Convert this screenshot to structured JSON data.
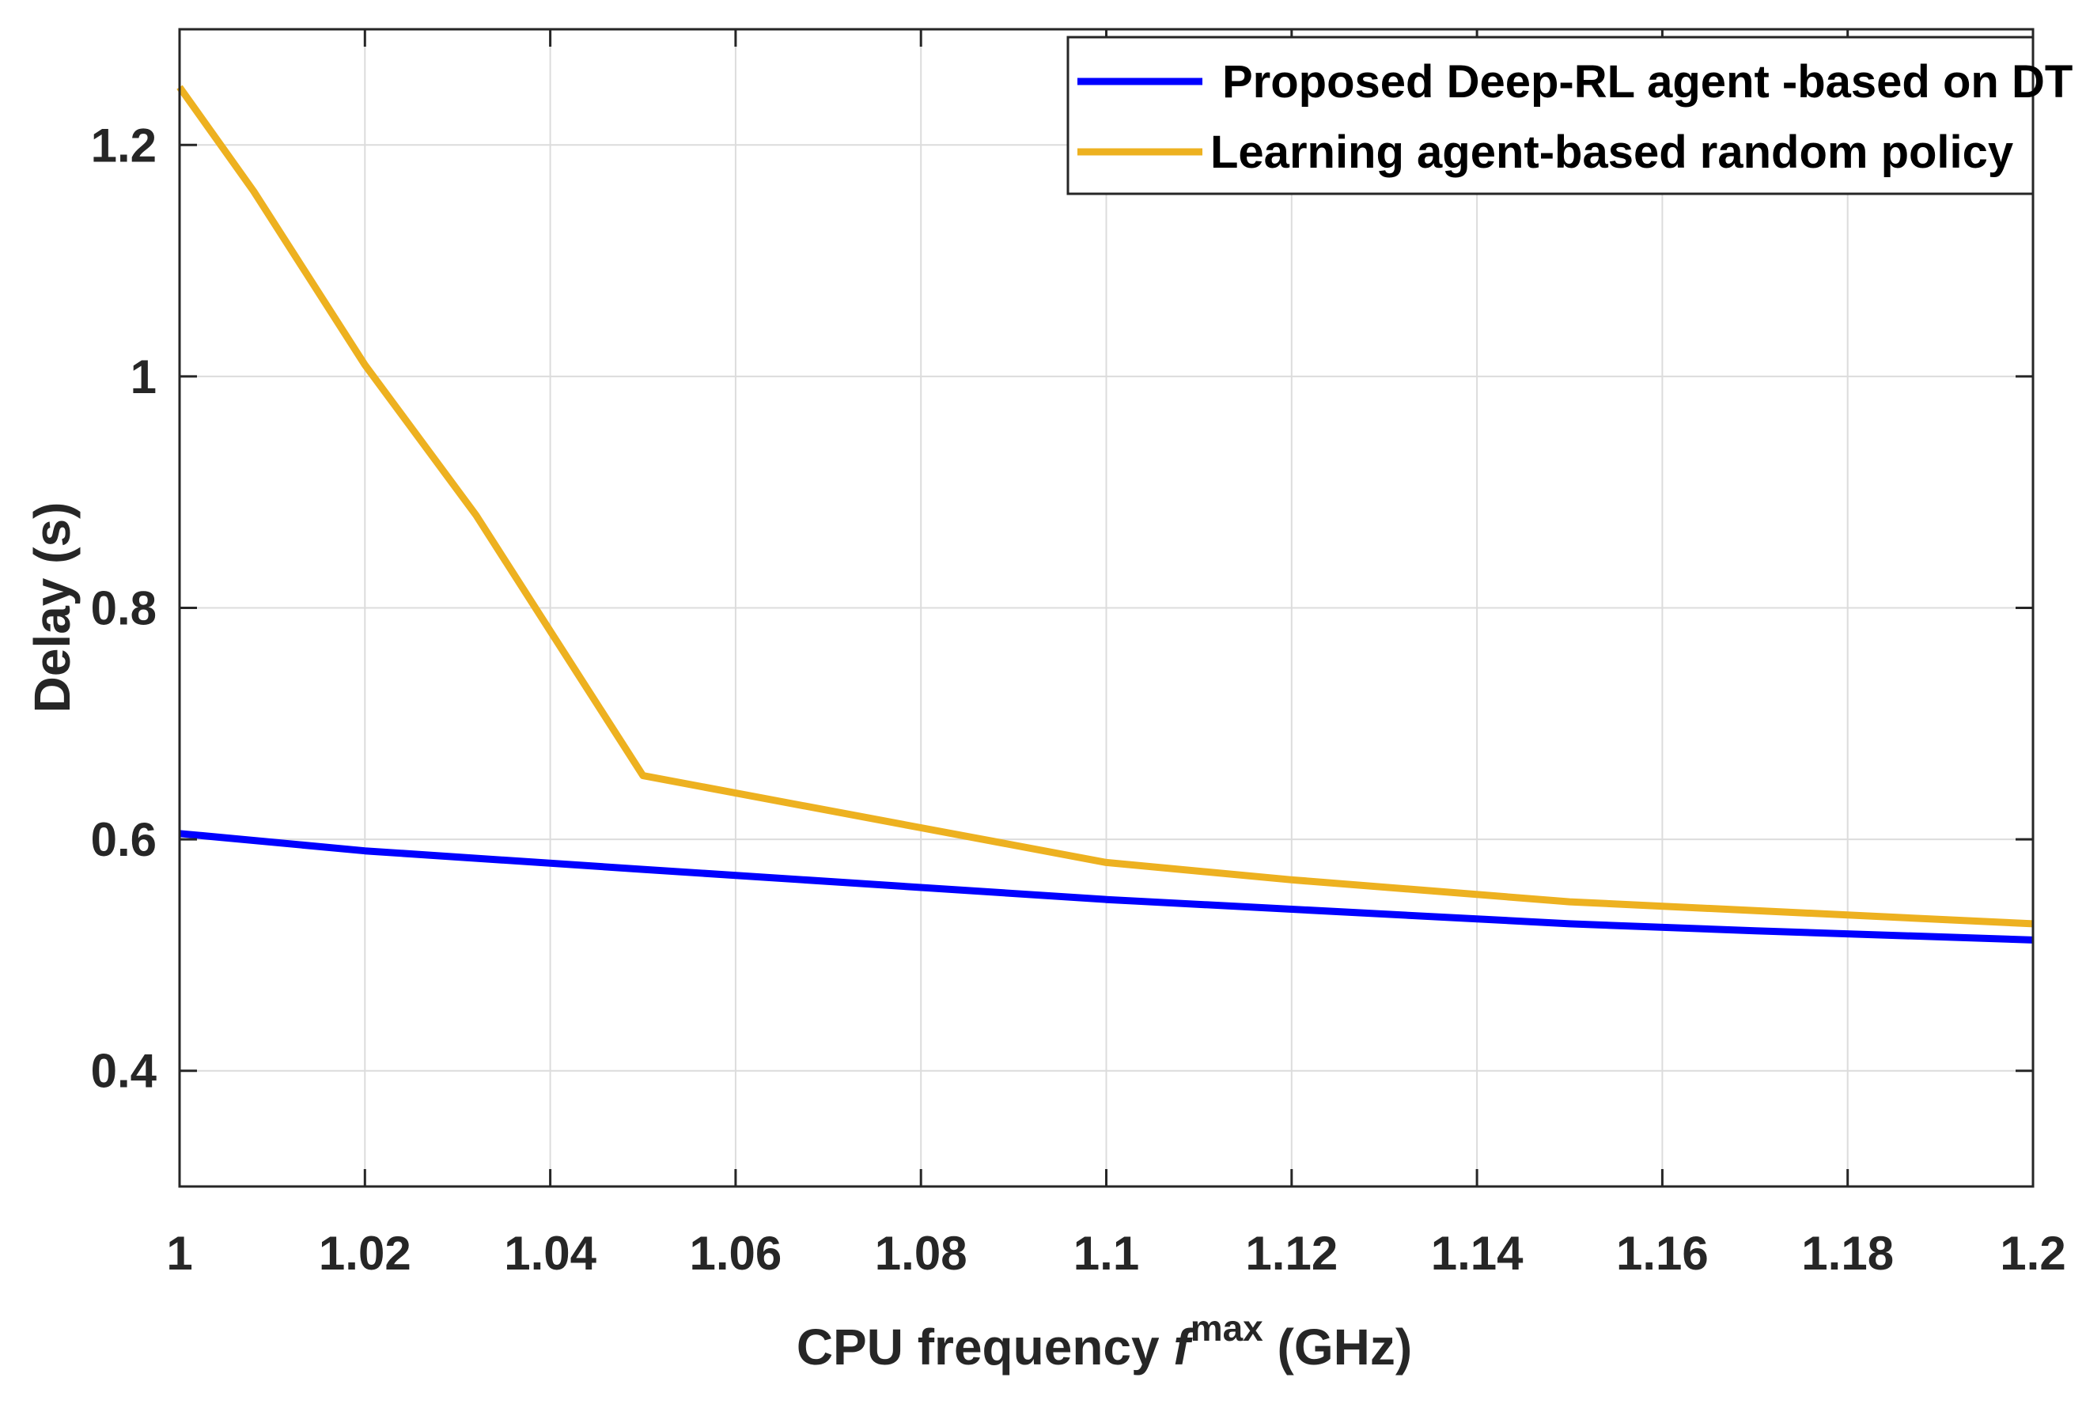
{
  "chart_data": {
    "type": "line",
    "title": "",
    "xlabel": {
      "prefix": "CPU frequency ",
      "symbol": "f",
      "superscript": "max",
      "suffix": " (GHz)"
    },
    "ylabel": "Delay (s)",
    "xlim": [
      1.0,
      1.2
    ],
    "ylim": [
      0.3,
      1.3
    ],
    "grid": true,
    "legend_position": "top-right",
    "x_ticks": [
      1.0,
      1.02,
      1.04,
      1.06,
      1.08,
      1.1,
      1.12,
      1.14,
      1.16,
      1.18,
      1.2
    ],
    "x_tick_labels": [
      "1",
      "1.02",
      "1.04",
      "1.06",
      "1.08",
      "1.1",
      "1.12",
      "1.14",
      "1.16",
      "1.18",
      "1.2"
    ],
    "y_ticks": [
      0.4,
      0.6,
      0.8,
      1.0,
      1.2
    ],
    "y_tick_labels": [
      "0.4",
      "0.6",
      "0.8",
      "1",
      "1.2"
    ],
    "series": [
      {
        "name": "Proposed Deep-RL agent -based on DT",
        "color": "#0000ff",
        "x": [
          1.0,
          1.02,
          1.05,
          1.1,
          1.15,
          1.17,
          1.2
        ],
        "values": [
          0.605,
          0.59,
          0.574,
          0.548,
          0.527,
          0.521,
          0.513
        ]
      },
      {
        "name": "Learning agent-based random policy",
        "color": "#edb120",
        "x": [
          1.0,
          1.008,
          1.02,
          1.032,
          1.04,
          1.05,
          1.08,
          1.1,
          1.12,
          1.15,
          1.2
        ],
        "values": [
          1.25,
          1.16,
          1.01,
          0.88,
          0.78,
          0.655,
          0.61,
          0.58,
          0.565,
          0.546,
          0.527
        ]
      }
    ]
  }
}
